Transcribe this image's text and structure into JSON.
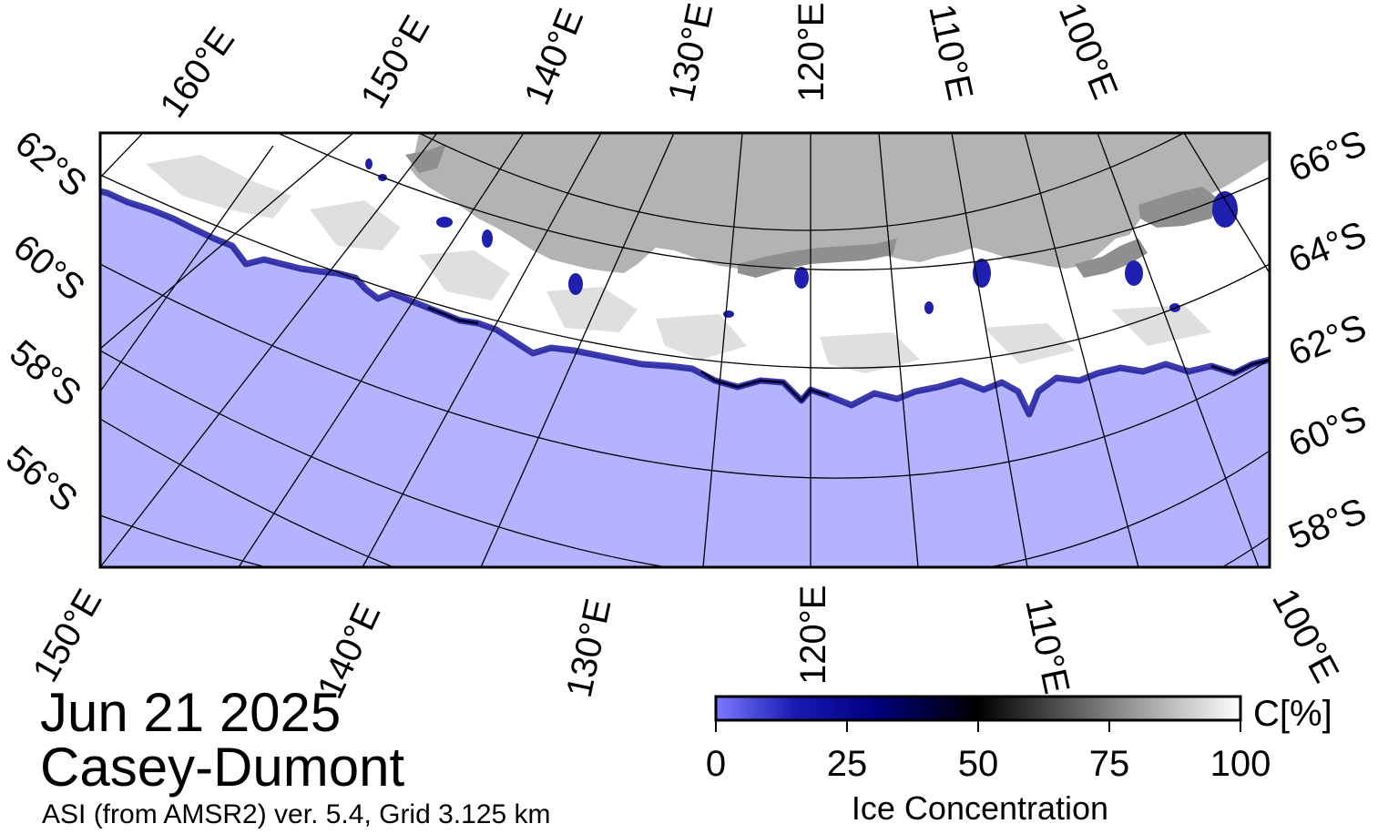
{
  "map": {
    "date": "Jun 21 2025",
    "region": "Casey-Dumont",
    "source": "ASI (from AMSR2) ver. 5.4,  Grid 3.125 km",
    "colors": {
      "open_water": "#b3b3ff",
      "land": "#b3b3b3",
      "ice_shelf": "#8f8f8f",
      "sea_ice_full": "#ffffff",
      "graticule": "#000000"
    },
    "graticule_labels": {
      "top_longitudes": [
        "160°E",
        "150°E",
        "140°E",
        "130°E",
        "120°E",
        "110°E",
        "100°E"
      ],
      "left_latitudes": [
        "62°S",
        "60°S",
        "58°S",
        "56°S"
      ],
      "right_latitudes": [
        "66°S",
        "64°S",
        "62°S",
        "60°S",
        "58°S"
      ],
      "bottom_longitudes": [
        "150°E",
        "140°E",
        "130°E",
        "120°E",
        "110°E",
        "100°E"
      ]
    }
  },
  "colorbar": {
    "label": "Ice Concentration",
    "unit": "C[%]",
    "ticks": [
      "0",
      "25",
      "50",
      "75",
      "100"
    ],
    "stops": [
      {
        "value": 0,
        "color": "#7a7aff"
      },
      {
        "value": 15,
        "color": "#1a1ab3"
      },
      {
        "value": 30,
        "color": "#000080"
      },
      {
        "value": 50,
        "color": "#000000"
      },
      {
        "value": 75,
        "color": "#808080"
      },
      {
        "value": 100,
        "color": "#ffffff"
      }
    ]
  }
}
